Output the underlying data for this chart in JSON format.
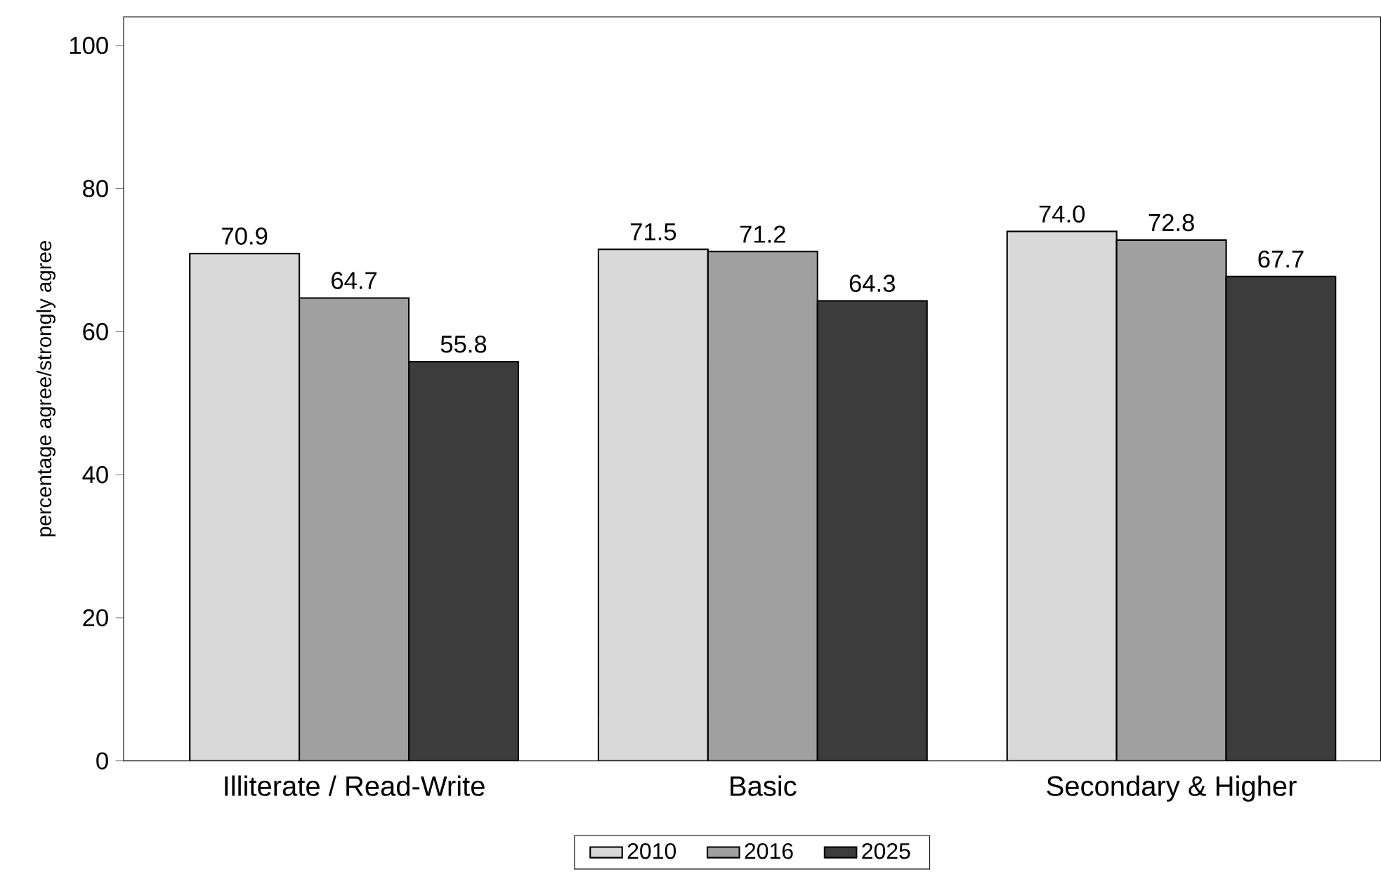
{
  "chart_data": {
    "type": "bar",
    "ylabel": "percentage agree/strongly agree",
    "categories": [
      "Illiterate / Read-Write",
      "Basic",
      "Secondary & Higher"
    ],
    "series": [
      {
        "name": "2010",
        "color": "#d9d9d9",
        "values": [
          70.9,
          71.5,
          74.0
        ],
        "value_labels": [
          "70.9",
          "71.5",
          "74.0"
        ]
      },
      {
        "name": "2016",
        "color": "#a0a0a0",
        "values": [
          64.7,
          71.2,
          72.8
        ],
        "value_labels": [
          "64.7",
          "71.2",
          "72.8"
        ]
      },
      {
        "name": "2025",
        "color": "#3c3c3c",
        "values": [
          55.8,
          64.3,
          67.7
        ],
        "value_labels": [
          "55.8",
          "64.3",
          "67.7"
        ]
      }
    ],
    "ylim": [
      0,
      104
    ],
    "yticks": [
      0,
      20,
      40,
      60,
      80,
      100
    ],
    "legend": "bottom",
    "grid": false
  }
}
